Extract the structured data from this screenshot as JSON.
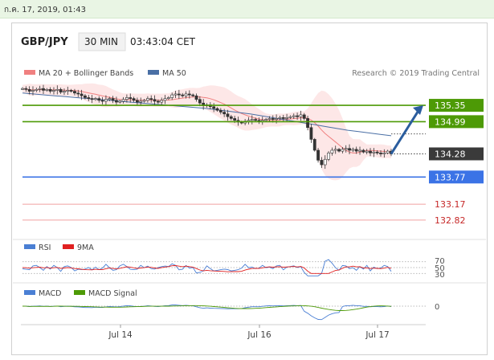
{
  "date_text": "ก.ค. 17, 2019, 01:43",
  "header": {
    "symbol": "GBP/JPY",
    "interval": "30 MIN",
    "time": "03:43:04 CET"
  },
  "legend_main": {
    "ma20_bb": "MA 20 + Bollinger Bands",
    "ma50": "MA 50",
    "credit": "Research © 2019 Trading Central"
  },
  "legend_rsi": {
    "rsi": "RSI",
    "ma9": "9MA"
  },
  "legend_macd": {
    "macd": "MACD",
    "signal": "MACD Signal"
  },
  "colors": {
    "resistance": "#4d9a06",
    "support": "#3b73e6",
    "target": "#c62828",
    "current": "#3a3a3a",
    "arrow": "#2b5d9e",
    "ma20": "#f08080",
    "ma50": "#4a6fa5",
    "bb_fill": "#fde3e3"
  },
  "chart_data": {
    "type": "candlestick",
    "x_ticks": [
      "Jul 14",
      "Jul 16",
      "Jul 17"
    ],
    "ylim": [
      132.5,
      135.9
    ],
    "levels": [
      {
        "value": 135.35,
        "label": "135.35",
        "kind": "resistance"
      },
      {
        "value": 134.99,
        "label": "134.99",
        "kind": "resistance"
      },
      {
        "value": 134.28,
        "label": "134.28",
        "kind": "current"
      },
      {
        "value": 133.77,
        "label": "133.77",
        "kind": "support"
      },
      {
        "value": 133.17,
        "label": "133.17",
        "kind": "target"
      },
      {
        "value": 132.82,
        "label": "132.82",
        "kind": "target"
      }
    ],
    "close_series": [
      135.72,
      135.7,
      135.66,
      135.68,
      135.7,
      135.72,
      135.68,
      135.7,
      135.66,
      135.68,
      135.7,
      135.64,
      135.66,
      135.68,
      135.66,
      135.62,
      135.6,
      135.56,
      135.52,
      135.5,
      135.48,
      135.5,
      135.46,
      135.44,
      135.48,
      135.5,
      135.46,
      135.42,
      135.44,
      135.48,
      135.52,
      135.5,
      135.46,
      135.42,
      135.44,
      135.46,
      135.5,
      135.48,
      135.44,
      135.42,
      135.46,
      135.5,
      135.52,
      135.58,
      135.6,
      135.58,
      135.56,
      135.6,
      135.58,
      135.56,
      135.48,
      135.4,
      135.34,
      135.36,
      135.32,
      135.28,
      135.24,
      135.2,
      135.16,
      135.1,
      135.06,
      135.02,
      134.98,
      134.96,
      135.0,
      135.02,
      135.04,
      135.02,
      135.0,
      135.02,
      135.04,
      135.06,
      135.04,
      135.06,
      135.08,
      135.06,
      135.08,
      135.1,
      135.12,
      135.1,
      135.14,
      135.06,
      134.86,
      134.6,
      134.36,
      134.14,
      134.04,
      134.16,
      134.3,
      134.36,
      134.38,
      134.34,
      134.38,
      134.4,
      134.36,
      134.38,
      134.34,
      134.36,
      134.32,
      134.34,
      134.3,
      134.32,
      134.3,
      134.28,
      134.3,
      134.34,
      134.28
    ],
    "ma50_series": [
      135.62,
      135.6,
      135.58,
      135.56,
      135.54,
      135.52,
      135.5,
      135.48,
      135.46,
      135.44,
      135.42,
      135.4,
      135.38,
      135.36,
      135.34,
      135.32,
      135.3,
      135.28,
      135.25,
      135.22,
      135.19,
      135.16,
      135.12,
      135.08,
      135.04,
      135.0,
      134.96,
      134.92,
      134.88,
      134.84,
      134.8,
      134.77,
      134.74,
      134.71,
      134.68
    ],
    "projection": {
      "from": 134.28,
      "to": 135.35
    },
    "rsi": {
      "levels": [
        70,
        50,
        30
      ],
      "level_labels": [
        "70",
        "50",
        "30"
      ]
    },
    "macd": {
      "zero_label": "0"
    }
  }
}
